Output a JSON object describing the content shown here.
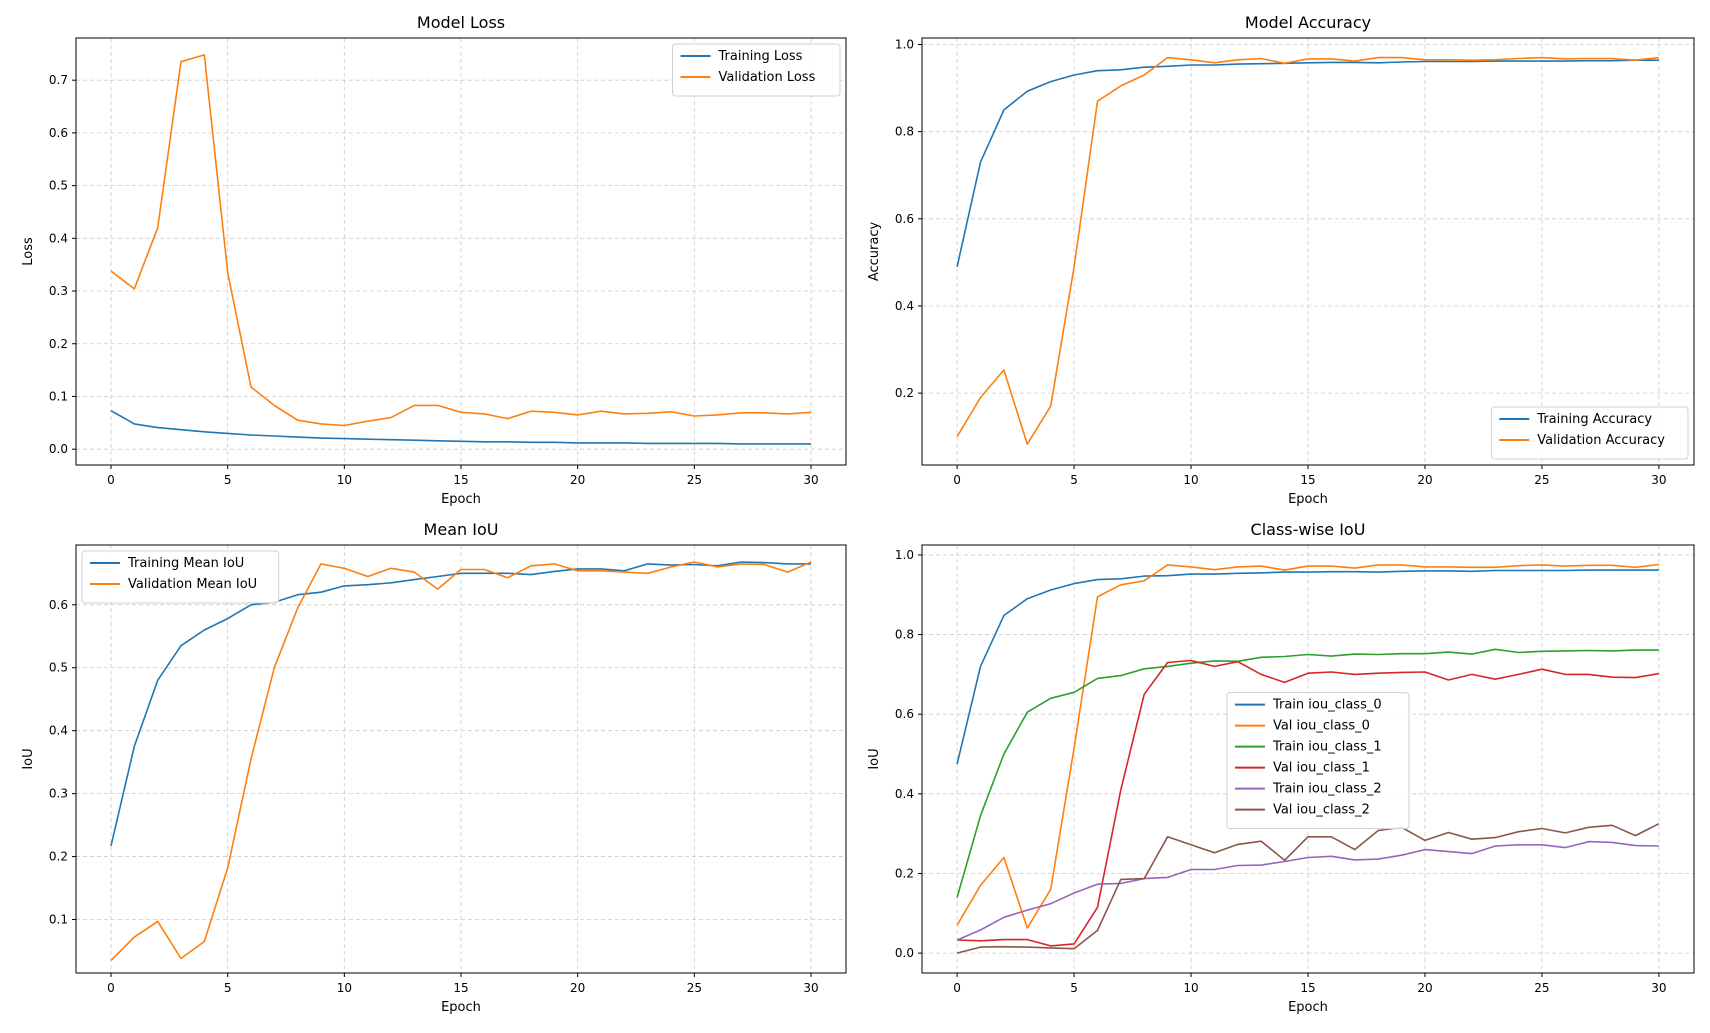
{
  "colors": {
    "C0": "#1f77b4",
    "C1": "#ff7f0e",
    "C2": "#2ca02c",
    "C3": "#d62728",
    "C4": "#9467bd",
    "C5": "#8c564b",
    "grid": "#cccccc"
  },
  "chart_data": [
    {
      "type": "line",
      "title": "Model Loss",
      "xlabel": "Epoch",
      "ylabel": "Loss",
      "xlim": [
        -1.5,
        31.5
      ],
      "ylim": [
        -0.03,
        0.78
      ],
      "grid": true,
      "legend": "upper-right",
      "xticks": [
        0,
        5,
        10,
        15,
        20,
        25,
        30
      ],
      "yticks": [
        0.0,
        0.1,
        0.2,
        0.3,
        0.4,
        0.5,
        0.6,
        0.7
      ],
      "x": [
        0,
        1,
        2,
        3,
        4,
        5,
        6,
        7,
        8,
        9,
        10,
        11,
        12,
        13,
        14,
        15,
        16,
        17,
        18,
        19,
        20,
        21,
        22,
        23,
        24,
        25,
        26,
        27,
        28,
        29,
        30
      ],
      "series": [
        {
          "name": "Training Loss",
          "color": "#1f77b4",
          "values": [
            0.073,
            0.048,
            0.041,
            0.037,
            0.033,
            0.03,
            0.027,
            0.025,
            0.023,
            0.021,
            0.02,
            0.019,
            0.018,
            0.017,
            0.016,
            0.015,
            0.014,
            0.014,
            0.013,
            0.013,
            0.012,
            0.012,
            0.012,
            0.011,
            0.011,
            0.011,
            0.011,
            0.01,
            0.01,
            0.01,
            0.01
          ]
        },
        {
          "name": "Validation Loss",
          "color": "#ff7f0e",
          "values": [
            0.338,
            0.304,
            0.42,
            0.735,
            0.748,
            0.335,
            0.118,
            0.083,
            0.055,
            0.048,
            0.045,
            0.053,
            0.06,
            0.083,
            0.083,
            0.07,
            0.067,
            0.058,
            0.072,
            0.07,
            0.065,
            0.072,
            0.067,
            0.068,
            0.071,
            0.063,
            0.065,
            0.069,
            0.069,
            0.067,
            0.07
          ]
        }
      ]
    },
    {
      "type": "line",
      "title": "Model Accuracy",
      "xlabel": "Epoch",
      "ylabel": "Accuracy",
      "xlim": [
        -1.5,
        31.5
      ],
      "ylim": [
        0.035,
        1.015
      ],
      "grid": true,
      "legend": "lower-right",
      "xticks": [
        0,
        5,
        10,
        15,
        20,
        25,
        30
      ],
      "yticks": [
        0.2,
        0.4,
        0.6,
        0.8,
        1.0
      ],
      "x": [
        0,
        1,
        2,
        3,
        4,
        5,
        6,
        7,
        8,
        9,
        10,
        11,
        12,
        13,
        14,
        15,
        16,
        17,
        18,
        19,
        20,
        21,
        22,
        23,
        24,
        25,
        26,
        27,
        28,
        29,
        30
      ],
      "series": [
        {
          "name": "Training Accuracy",
          "color": "#1f77b4",
          "values": [
            0.49,
            0.73,
            0.85,
            0.893,
            0.915,
            0.93,
            0.94,
            0.942,
            0.948,
            0.95,
            0.953,
            0.953,
            0.955,
            0.956,
            0.957,
            0.958,
            0.959,
            0.959,
            0.958,
            0.96,
            0.961,
            0.961,
            0.961,
            0.962,
            0.962,
            0.962,
            0.962,
            0.963,
            0.963,
            0.964,
            0.964
          ]
        },
        {
          "name": "Validation Accuracy",
          "color": "#ff7f0e",
          "values": [
            0.1,
            0.19,
            0.253,
            0.083,
            0.17,
            0.49,
            0.87,
            0.905,
            0.93,
            0.97,
            0.965,
            0.958,
            0.965,
            0.968,
            0.957,
            0.967,
            0.967,
            0.962,
            0.97,
            0.97,
            0.965,
            0.965,
            0.964,
            0.965,
            0.968,
            0.97,
            0.967,
            0.968,
            0.968,
            0.964,
            0.97
          ]
        }
      ]
    },
    {
      "type": "line",
      "title": "Mean IoU",
      "xlabel": "Epoch",
      "ylabel": "IoU",
      "xlim": [
        -1.5,
        31.5
      ],
      "ylim": [
        0.015,
        0.695
      ],
      "grid": true,
      "legend": "upper-left",
      "xticks": [
        0,
        5,
        10,
        15,
        20,
        25,
        30
      ],
      "yticks": [
        0.1,
        0.2,
        0.3,
        0.4,
        0.5,
        0.6
      ],
      "x": [
        0,
        1,
        2,
        3,
        4,
        5,
        6,
        7,
        8,
        9,
        10,
        11,
        12,
        13,
        14,
        15,
        16,
        17,
        18,
        19,
        20,
        21,
        22,
        23,
        24,
        25,
        26,
        27,
        28,
        29,
        30
      ],
      "series": [
        {
          "name": "Training Mean IoU",
          "color": "#1f77b4",
          "values": [
            0.217,
            0.375,
            0.48,
            0.535,
            0.56,
            0.578,
            0.6,
            0.604,
            0.616,
            0.62,
            0.63,
            0.632,
            0.635,
            0.64,
            0.645,
            0.65,
            0.65,
            0.65,
            0.648,
            0.653,
            0.657,
            0.657,
            0.654,
            0.665,
            0.663,
            0.664,
            0.662,
            0.668,
            0.667,
            0.665,
            0.665
          ]
        },
        {
          "name": "Validation Mean IoU",
          "color": "#ff7f0e",
          "values": [
            0.035,
            0.072,
            0.097,
            0.038,
            0.065,
            0.182,
            0.355,
            0.5,
            0.595,
            0.665,
            0.658,
            0.645,
            0.658,
            0.652,
            0.625,
            0.656,
            0.656,
            0.643,
            0.662,
            0.665,
            0.654,
            0.654,
            0.652,
            0.65,
            0.66,
            0.668,
            0.66,
            0.665,
            0.664,
            0.652,
            0.668
          ]
        }
      ]
    },
    {
      "type": "line",
      "title": "Class-wise IoU",
      "xlabel": "Epoch",
      "ylabel": "IoU",
      "xlim": [
        -1.5,
        31.5
      ],
      "ylim": [
        -0.05,
        1.025
      ],
      "grid": true,
      "legend": "center",
      "xticks": [
        0,
        5,
        10,
        15,
        20,
        25,
        30
      ],
      "yticks": [
        0.0,
        0.2,
        0.4,
        0.6,
        0.8,
        1.0
      ],
      "x": [
        0,
        1,
        2,
        3,
        4,
        5,
        6,
        7,
        8,
        9,
        10,
        11,
        12,
        13,
        14,
        15,
        16,
        17,
        18,
        19,
        20,
        21,
        22,
        23,
        24,
        25,
        26,
        27,
        28,
        29,
        30
      ],
      "series": [
        {
          "name": "Train iou_class_0",
          "color": "#1f77b4",
          "values": [
            0.475,
            0.72,
            0.848,
            0.89,
            0.912,
            0.928,
            0.938,
            0.94,
            0.947,
            0.948,
            0.952,
            0.952,
            0.954,
            0.955,
            0.957,
            0.957,
            0.958,
            0.958,
            0.957,
            0.959,
            0.96,
            0.96,
            0.959,
            0.961,
            0.961,
            0.961,
            0.961,
            0.962,
            0.962,
            0.962,
            0.962
          ]
        },
        {
          "name": "Val iou_class_0",
          "color": "#ff7f0e",
          "values": [
            0.07,
            0.17,
            0.24,
            0.063,
            0.16,
            0.515,
            0.895,
            0.925,
            0.935,
            0.975,
            0.97,
            0.963,
            0.97,
            0.972,
            0.962,
            0.972,
            0.972,
            0.967,
            0.975,
            0.975,
            0.97,
            0.97,
            0.969,
            0.969,
            0.973,
            0.975,
            0.972,
            0.974,
            0.974,
            0.969,
            0.976
          ]
        },
        {
          "name": "Train iou_class_1",
          "color": "#2ca02c",
          "values": [
            0.14,
            0.345,
            0.5,
            0.605,
            0.64,
            0.655,
            0.69,
            0.697,
            0.714,
            0.72,
            0.728,
            0.734,
            0.733,
            0.743,
            0.745,
            0.75,
            0.746,
            0.751,
            0.75,
            0.752,
            0.752,
            0.756,
            0.751,
            0.763,
            0.755,
            0.758,
            0.759,
            0.76,
            0.759,
            0.761,
            0.761
          ]
        },
        {
          "name": "Val iou_class_1",
          "color": "#d62728",
          "values": [
            0.033,
            0.031,
            0.034,
            0.034,
            0.018,
            0.023,
            0.115,
            0.41,
            0.65,
            0.73,
            0.735,
            0.72,
            0.732,
            0.7,
            0.68,
            0.703,
            0.706,
            0.7,
            0.703,
            0.705,
            0.706,
            0.686,
            0.7,
            0.688,
            0.7,
            0.713,
            0.7,
            0.7,
            0.693,
            0.692,
            0.702
          ]
        },
        {
          "name": "Train iou_class_2",
          "color": "#9467bd",
          "values": [
            0.033,
            0.058,
            0.09,
            0.108,
            0.124,
            0.151,
            0.173,
            0.175,
            0.187,
            0.19,
            0.21,
            0.21,
            0.22,
            0.221,
            0.23,
            0.24,
            0.243,
            0.234,
            0.236,
            0.246,
            0.26,
            0.255,
            0.25,
            0.269,
            0.272,
            0.272,
            0.265,
            0.28,
            0.278,
            0.27,
            0.269
          ]
        },
        {
          "name": "Val iou_class_2",
          "color": "#8c564b",
          "values": [
            0.0,
            0.015,
            0.016,
            0.015,
            0.013,
            0.011,
            0.057,
            0.185,
            0.187,
            0.292,
            0.272,
            0.252,
            0.273,
            0.281,
            0.233,
            0.292,
            0.292,
            0.26,
            0.308,
            0.316,
            0.283,
            0.303,
            0.286,
            0.29,
            0.305,
            0.313,
            0.302,
            0.316,
            0.321,
            0.295,
            0.325
          ]
        }
      ]
    }
  ]
}
